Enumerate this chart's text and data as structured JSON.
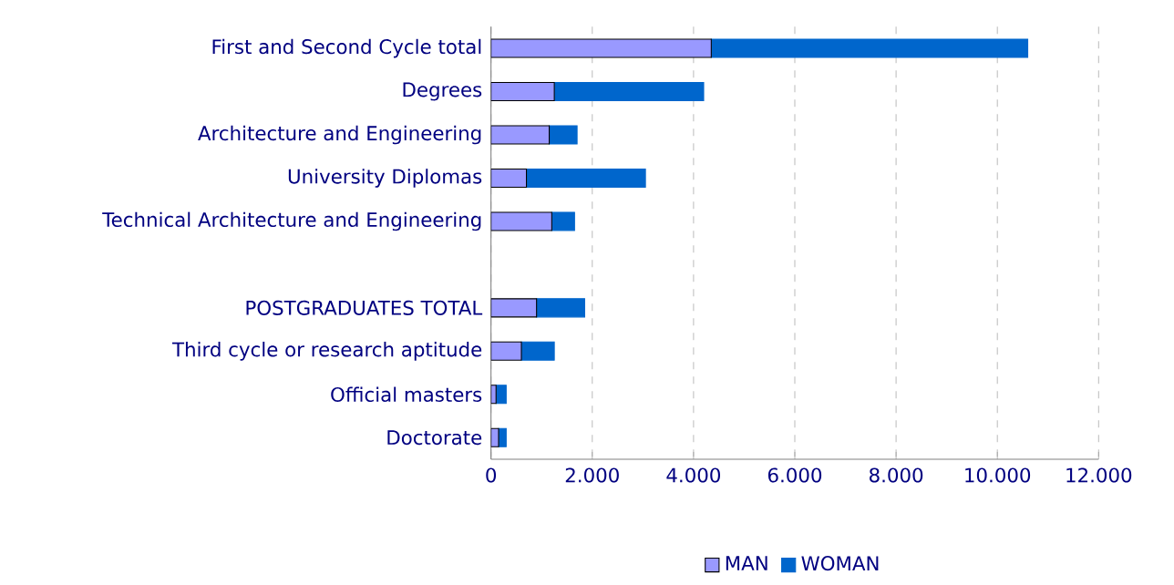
{
  "chart_data": {
    "type": "bar",
    "orientation": "horizontal",
    "stacked": true,
    "categories": [
      "First and Second Cycle total",
      "Degrees",
      "Architecture and Engineering",
      "University Diplomas",
      "Technical Architecture and Engineering",
      null,
      "POSTGRADUATES TOTAL",
      "Third cycle or research aptitude",
      "Official masters",
      "Doctorate"
    ],
    "series": [
      {
        "name": "MAN",
        "color": "#9999ff",
        "values": [
          4350,
          1250,
          1150,
          700,
          1200,
          null,
          900,
          600,
          100,
          150
        ]
      },
      {
        "name": "WOMAN",
        "color": "#0066cc",
        "values": [
          6250,
          2950,
          550,
          2350,
          450,
          null,
          950,
          650,
          200,
          150
        ]
      }
    ],
    "xlim": [
      0,
      12000
    ],
    "xticks": [
      0,
      {
        "value": 2000,
        "label": "2.000"
      },
      {
        "value": 4000,
        "label": "4.000"
      },
      {
        "value": 6000,
        "label": "6.000"
      },
      {
        "value": 8000,
        "label": "8.000"
      },
      {
        "value": 10000,
        "label": "10.000"
      },
      {
        "value": 12000,
        "label": "12.000"
      }
    ],
    "grid": "x",
    "legend": "bottom"
  }
}
